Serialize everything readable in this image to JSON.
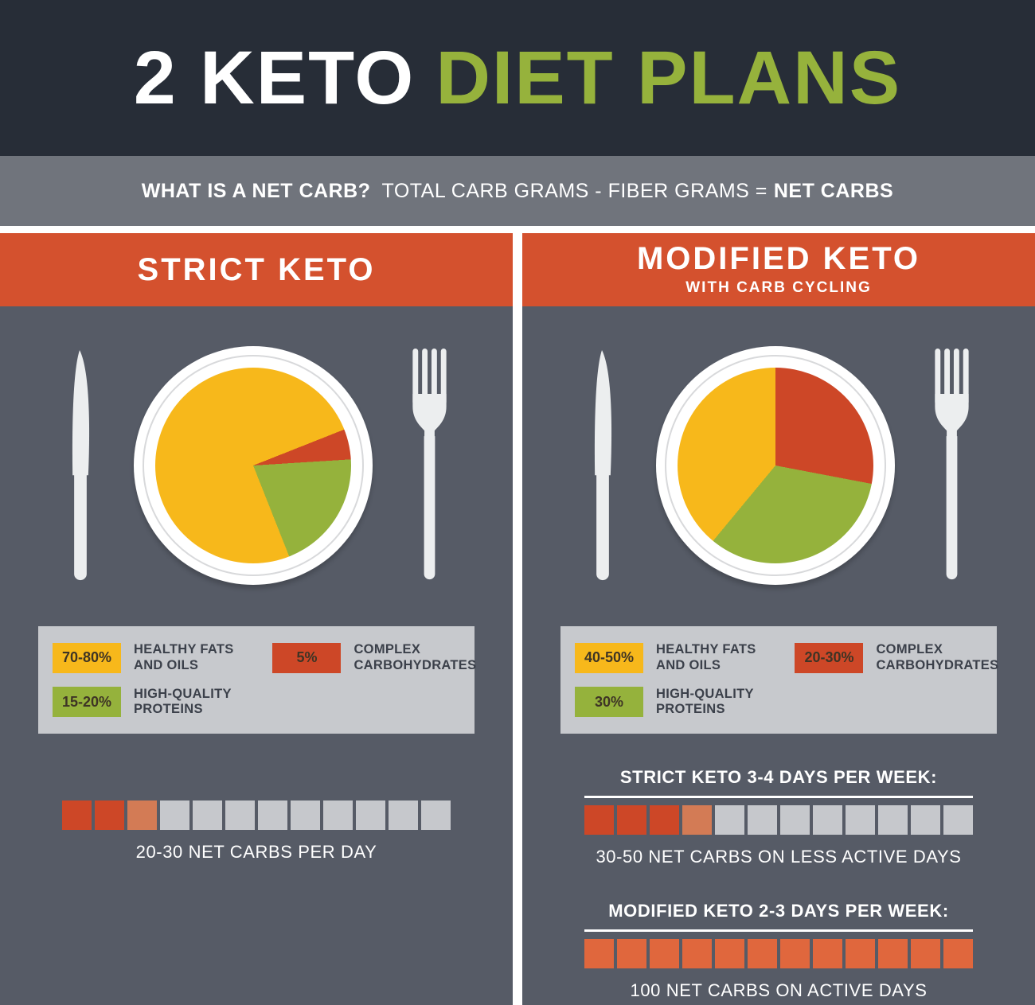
{
  "colors": {
    "yellow": "#f7b81b",
    "red": "#cd4727",
    "green": "#95b23c",
    "salmon": "#d37b55",
    "gray": "#c6c8cc",
    "orange": "#e0673d",
    "accent_green": "#96b23c",
    "header_orange": "#d4512e",
    "dark_header": "#272d37",
    "slate_body": "#565b66",
    "band_gray": "#70747c",
    "legend_bg": "#c7c9cd"
  },
  "header": {
    "title": "2 KETO",
    "title_accent": "DIET PLANS"
  },
  "net_carb_band": {
    "question": "WHAT IS A NET CARB?",
    "formula": "TOTAL CARB GRAMS - FIBER GRAMS =",
    "result": "NET CARBS"
  },
  "strict": {
    "title": "STRICT KETO",
    "legend": [
      {
        "percent": "70-80%",
        "color": "yellow",
        "label": "HEALTHY FATS\nAND OILS"
      },
      {
        "percent": "5%",
        "color": "red",
        "label": "COMPLEX\nCARBOHYDRATES"
      },
      {
        "percent": "15-20%",
        "color": "green",
        "label": "HIGH-QUALITY\nPROTEINS"
      }
    ],
    "squares": [
      "red",
      "red",
      "salmon",
      "gray",
      "gray",
      "gray",
      "gray",
      "gray",
      "gray",
      "gray",
      "gray",
      "gray"
    ],
    "caption": "20-30 NET CARBS PER DAY"
  },
  "modified": {
    "title": "MODIFIED KETO",
    "subtitle": "WITH CARB CYCLING",
    "legend": [
      {
        "percent": "40-50%",
        "color": "yellow",
        "label": "HEALTHY FATS\nAND OILS"
      },
      {
        "percent": "20-30%",
        "color": "red",
        "label": "COMPLEX\nCARBOHYDRATES"
      },
      {
        "percent": "30%",
        "color": "green",
        "label": "HIGH-QUALITY\nPROTEINS"
      }
    ],
    "sections": [
      {
        "heading": "STRICT KETO 3-4 DAYS PER WEEK:",
        "squares": [
          "red",
          "red",
          "red",
          "salmon",
          "gray",
          "gray",
          "gray",
          "gray",
          "gray",
          "gray",
          "gray",
          "gray"
        ],
        "caption": "30-50 NET CARBS ON LESS ACTIVE DAYS"
      },
      {
        "heading": "MODIFIED KETO 2-3 DAYS PER WEEK:",
        "squares": [
          "orange",
          "orange",
          "orange",
          "orange",
          "orange",
          "orange",
          "orange",
          "orange",
          "orange",
          "orange",
          "orange",
          "orange"
        ],
        "caption": "100 NET CARBS ON ACTIVE DAYS"
      }
    ]
  },
  "chart_data": [
    {
      "type": "pie",
      "title": "STRICT KETO",
      "labels": [
        "HEALTHY FATS AND OILS",
        "HIGH-QUALITY PROTEINS",
        "COMPLEX CARBOHYDRATES"
      ],
      "value_labels": [
        "70-80%",
        "15-20%",
        "5%"
      ],
      "values": [
        75,
        20,
        5
      ],
      "slice_colors": [
        "#f7b81b",
        "#95b23c",
        "#cd4727"
      ],
      "legend_position": "below",
      "display_slices": [
        {
          "color": "yellow",
          "pct": 19
        },
        {
          "color": "red",
          "pct": 5
        },
        {
          "color": "green",
          "pct": 20
        },
        {
          "color": "yellow",
          "pct": 56
        }
      ]
    },
    {
      "type": "pie",
      "title": "MODIFIED KETO WITH CARB CYCLING",
      "labels": [
        "HEALTHY FATS AND OILS",
        "HIGH-QUALITY PROTEINS",
        "COMPLEX CARBOHYDRATES"
      ],
      "value_labels": [
        "40-50%",
        "30%",
        "20-30%"
      ],
      "values": [
        45,
        30,
        25
      ],
      "slice_colors": [
        "#f7b81b",
        "#95b23c",
        "#cd4727"
      ],
      "legend_position": "below",
      "display_slices": [
        {
          "color": "red",
          "pct": 28
        },
        {
          "color": "green",
          "pct": 33
        },
        {
          "color": "yellow",
          "pct": 39
        }
      ]
    }
  ]
}
